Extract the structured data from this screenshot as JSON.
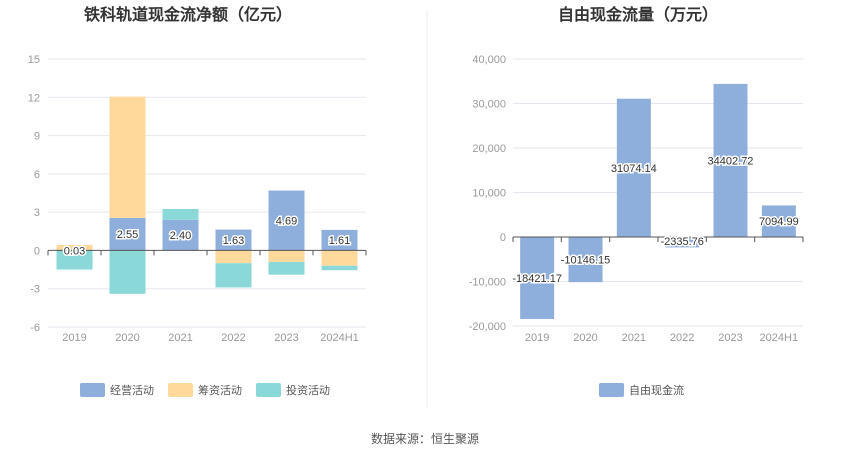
{
  "source": "数据来源：恒生聚源",
  "chart_data": [
    {
      "type": "bar",
      "title": "铁科轨道现金流净额（亿元）",
      "stacked": true,
      "categories": [
        "2019",
        "2020",
        "2021",
        "2022",
        "2023",
        "2024H1"
      ],
      "ylim": [
        -6,
        15
      ],
      "yticks": [
        "15",
        "12",
        "9",
        "6",
        "3",
        "0",
        "-3",
        "-6"
      ],
      "ytick_values": [
        15,
        12,
        9,
        6,
        3,
        0,
        -3,
        -6
      ],
      "grid": true,
      "legend_position": "bottom",
      "series": [
        {
          "name": "经营活动",
          "color": "#8eaedc",
          "values": [
            0.03,
            2.55,
            2.4,
            1.63,
            4.69,
            1.61
          ],
          "labels": [
            "0.03",
            "2.55",
            "2.40",
            "1.63",
            "4.69",
            "1.61"
          ]
        },
        {
          "name": "筹资活动",
          "color": "#ffd99b",
          "values": [
            0.4,
            9.5,
            0,
            -1.0,
            -0.9,
            -1.2
          ]
        },
        {
          "name": "投资活动",
          "color": "#8ad8d8",
          "values": [
            -1.5,
            -3.4,
            0.85,
            -1.9,
            -1.0,
            -0.35
          ]
        }
      ]
    },
    {
      "type": "bar",
      "title": "自由现金流量（万元）",
      "categories": [
        "2019",
        "2020",
        "2021",
        "2022",
        "2023",
        "2024H1"
      ],
      "ylim": [
        -20000,
        40000
      ],
      "yticks": [
        "40,000",
        "30,000",
        "20,000",
        "10,000",
        "0",
        "-10,000",
        "-20,000"
      ],
      "ytick_values": [
        40000,
        30000,
        20000,
        10000,
        0,
        -10000,
        -20000
      ],
      "grid": true,
      "legend_position": "bottom",
      "series": [
        {
          "name": "自由现金流",
          "color": "#8eaedc",
          "values": [
            -18421.17,
            -10146.15,
            31074.14,
            -2335.76,
            34402.72,
            7094.99
          ],
          "labels": [
            "-18421.17",
            "-10146.15",
            "31074.14",
            "-2335.76",
            "34402.72",
            "7094.99"
          ]
        }
      ]
    }
  ]
}
